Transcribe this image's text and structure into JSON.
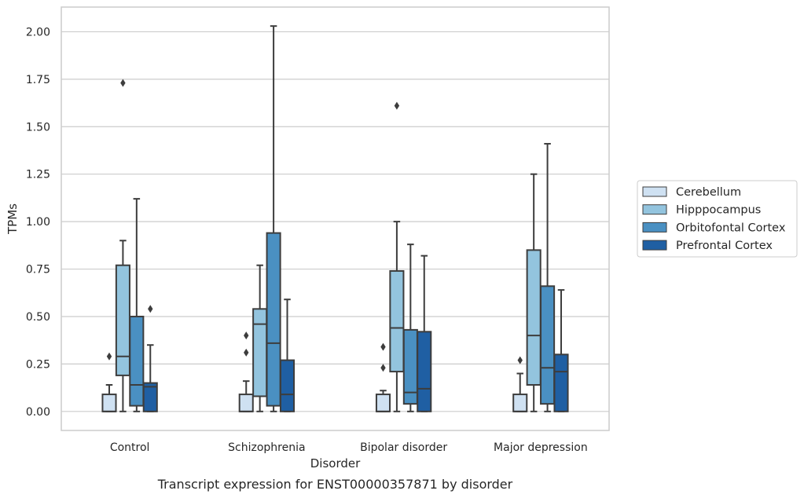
{
  "chart_data": {
    "type": "box",
    "caption": "Transcript expression for ENST00000357871 by disorder",
    "xlabel": "Disorder",
    "ylabel": "TPMs",
    "ylim": [
      -0.1,
      2.13
    ],
    "yticks": [
      "0.00",
      "0.25",
      "0.50",
      "0.75",
      "1.00",
      "1.25",
      "1.50",
      "1.75",
      "2.00"
    ],
    "ytick_values": [
      0,
      0.25,
      0.5,
      0.75,
      1.0,
      1.25,
      1.5,
      1.75,
      2.0
    ],
    "grid": true,
    "legend_position": "right",
    "categories": [
      "Control",
      "Schizophrenia",
      "Bipolar disorder",
      "Major depression"
    ],
    "series": [
      {
        "name": "Cerebellum",
        "color": "#cfe1f2",
        "boxes": [
          {
            "whislo": 0.0,
            "q1": 0.0,
            "med": 0.0,
            "q3": 0.09,
            "whishi": 0.14,
            "fliers": [
              0.29
            ]
          },
          {
            "whislo": 0.0,
            "q1": 0.0,
            "med": 0.0,
            "q3": 0.09,
            "whishi": 0.16,
            "fliers": [
              0.31,
              0.4
            ]
          },
          {
            "whislo": 0.0,
            "q1": 0.0,
            "med": 0.0,
            "q3": 0.09,
            "whishi": 0.11,
            "fliers": [
              0.23,
              0.34
            ]
          },
          {
            "whislo": 0.0,
            "q1": 0.0,
            "med": 0.0,
            "q3": 0.09,
            "whishi": 0.2,
            "fliers": [
              0.27
            ]
          }
        ]
      },
      {
        "name": "Hipppocampus",
        "color": "#93c4de",
        "boxes": [
          {
            "whislo": 0.0,
            "q1": 0.19,
            "med": 0.29,
            "q3": 0.77,
            "whishi": 0.9,
            "fliers": [
              1.73
            ]
          },
          {
            "whislo": 0.0,
            "q1": 0.08,
            "med": 0.46,
            "q3": 0.54,
            "whishi": 0.77,
            "fliers": []
          },
          {
            "whislo": 0.0,
            "q1": 0.21,
            "med": 0.44,
            "q3": 0.74,
            "whishi": 1.0,
            "fliers": [
              1.61
            ]
          },
          {
            "whislo": 0.0,
            "q1": 0.14,
            "med": 0.4,
            "q3": 0.85,
            "whishi": 1.25,
            "fliers": []
          }
        ]
      },
      {
        "name": "Orbitofontal Cortex",
        "color": "#4a90c2",
        "boxes": [
          {
            "whislo": 0.0,
            "q1": 0.03,
            "med": 0.14,
            "q3": 0.5,
            "whishi": 1.12,
            "fliers": []
          },
          {
            "whislo": 0.0,
            "q1": 0.03,
            "med": 0.36,
            "q3": 0.94,
            "whishi": 2.03,
            "fliers": []
          },
          {
            "whislo": 0.0,
            "q1": 0.04,
            "med": 0.1,
            "q3": 0.43,
            "whishi": 0.88,
            "fliers": []
          },
          {
            "whislo": 0.0,
            "q1": 0.04,
            "med": 0.23,
            "q3": 0.66,
            "whishi": 1.41,
            "fliers": []
          }
        ]
      },
      {
        "name": "Prefrontal Cortex",
        "color": "#1f5fa3",
        "boxes": [
          {
            "whislo": 0.0,
            "q1": 0.0,
            "med": 0.13,
            "q3": 0.15,
            "whishi": 0.35,
            "fliers": [
              0.54
            ]
          },
          {
            "whislo": 0.0,
            "q1": 0.0,
            "med": 0.09,
            "q3": 0.27,
            "whishi": 0.59,
            "fliers": []
          },
          {
            "whislo": 0.0,
            "q1": 0.0,
            "med": 0.12,
            "q3": 0.42,
            "whishi": 0.82,
            "fliers": []
          },
          {
            "whislo": 0.0,
            "q1": 0.0,
            "med": 0.21,
            "q3": 0.3,
            "whishi": 0.64,
            "fliers": []
          }
        ]
      }
    ]
  }
}
